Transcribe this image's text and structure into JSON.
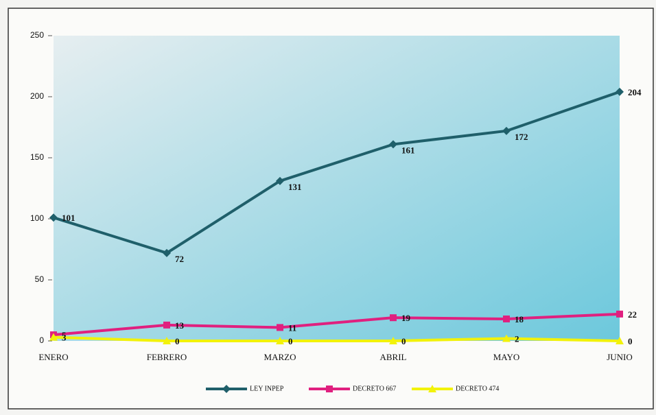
{
  "chart_data": {
    "type": "line",
    "categories": [
      "ENERO",
      "FEBRERO",
      "MARZO",
      "ABRIL",
      "MAYO",
      "JUNIO"
    ],
    "series": [
      {
        "name": "LEY INPEP",
        "color": "#1f5f6a",
        "marker": "diamond",
        "values": [
          101,
          72,
          131,
          161,
          172,
          204
        ]
      },
      {
        "name": "DECRETO 667",
        "color": "#e0207f",
        "marker": "square",
        "values": [
          5,
          13,
          11,
          19,
          18,
          22
        ]
      },
      {
        "name": "DECRETO 474",
        "color": "#f2f20a",
        "marker": "triangle",
        "values": [
          3,
          0,
          0,
          0,
          2,
          0
        ]
      }
    ],
    "ylim": [
      0,
      250
    ],
    "yticks": [
      0,
      50,
      100,
      150,
      200,
      250
    ],
    "legend": "bottom"
  }
}
